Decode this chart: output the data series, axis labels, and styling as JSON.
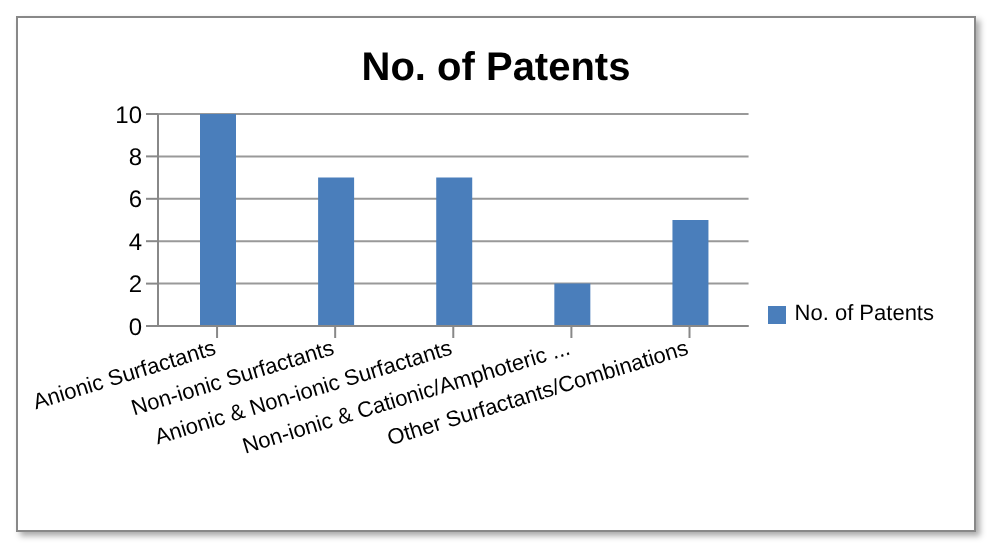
{
  "chart_data": {
    "type": "bar",
    "title": "No. of Patents",
    "categories": [
      "Anionic Surfactants",
      "Non-ionic Surfactants",
      "Anionic & Non-ionic Surfactants",
      "Non-ionic & Cationic/Amphoteric ...",
      "Other Surfactants/Combinations"
    ],
    "series": [
      {
        "name": "No. of Patents",
        "color": "#4a7ebb",
        "values": [
          10,
          7,
          7,
          2,
          5
        ]
      }
    ],
    "ylim": [
      0,
      10
    ],
    "yticks": [
      0,
      2,
      4,
      6,
      8,
      10
    ],
    "grid": "y",
    "legend": "right"
  }
}
